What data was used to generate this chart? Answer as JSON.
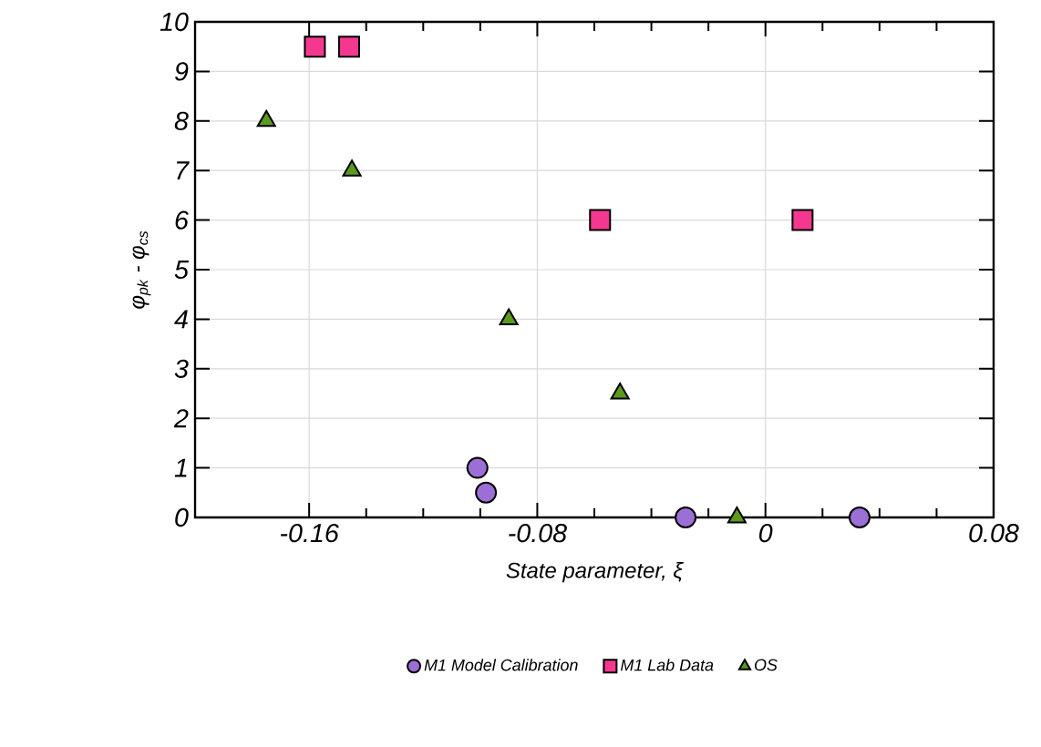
{
  "chart_data": {
    "type": "scatter",
    "xlabel": "State parameter, ξ",
    "ylabel": "φ$_{pk}$ - φ$_{cs}$",
    "xlim": [
      -0.2,
      0.08
    ],
    "xticks": [
      -0.16,
      -0.08,
      0,
      0.08
    ],
    "ylim": [
      0,
      10
    ],
    "yticks": [
      0,
      1,
      2,
      3,
      4,
      5,
      6,
      7,
      8,
      9,
      10
    ],
    "grid": true,
    "legend": "bottom",
    "series": [
      {
        "name": "M1 Model Calibration",
        "color": "#9b6fd6",
        "marker": "circle",
        "x": [
          -0.101,
          -0.098,
          -0.028,
          0.033
        ],
        "values": [
          1,
          0.5,
          0,
          0
        ]
      },
      {
        "name": "M1 Lab Data",
        "color": "#f5388f",
        "marker": "square",
        "x": [
          -0.158,
          -0.146,
          -0.058,
          0.013
        ],
        "values": [
          9.5,
          9.5,
          6,
          6
        ]
      },
      {
        "name": "OS",
        "color": "#5b9a1f",
        "marker": "triangle",
        "x": [
          -0.175,
          -0.145,
          -0.09,
          -0.051,
          -0.01
        ],
        "values": [
          8,
          7,
          4,
          2.5,
          0
        ]
      }
    ]
  }
}
